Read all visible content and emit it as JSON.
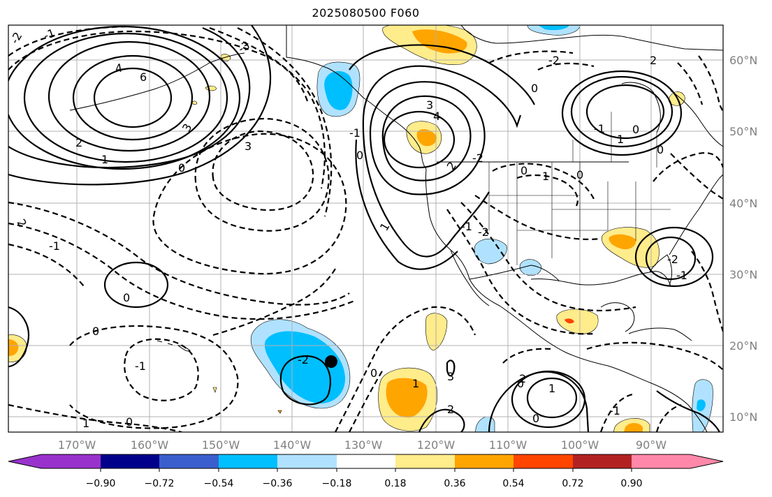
{
  "title": "2025080500 F060",
  "lat_labels": [
    "60°N",
    "50°N",
    "40°N",
    "30°N",
    "20°N",
    "10°N"
  ],
  "lon_labels": [
    "170°W",
    "160°W",
    "150°W",
    "140°W",
    "130°W",
    "120°W",
    "110°W",
    "100°W",
    "90°W"
  ],
  "colorbar": {
    "tick_labels": [
      "−0.90",
      "−0.72",
      "−0.54",
      "−0.36",
      "−0.18",
      "0.18",
      "0.36",
      "0.54",
      "0.72",
      "0.90"
    ],
    "colors": [
      "#9932cc",
      "#00008b",
      "#3a5fcd",
      "#00bfff",
      "#b0e2ff",
      "#ffffff",
      "#ffec8b",
      "#ffa500",
      "#ff4500",
      "#b22222",
      "#ff88aa"
    ]
  },
  "contour_labels": [
    "4",
    "6",
    "3",
    "2",
    "1",
    "0",
    "-1",
    "-2",
    "-3",
    "3",
    "4",
    "3",
    "2",
    "1",
    "0",
    "-1",
    "-2",
    "0",
    "-1",
    "0",
    "-1",
    "2",
    "1",
    "0",
    "-2",
    "0",
    "1",
    "2",
    "3",
    "2",
    "1",
    "0",
    "-1",
    "-2",
    "0",
    "1",
    "0",
    "2",
    "0",
    "1",
    "-1",
    "0",
    "-2",
    "0",
    "0",
    "-1",
    "-1",
    "-2"
  ],
  "storm_markers": [
    {
      "lon": -135,
      "lat": 18
    }
  ]
}
